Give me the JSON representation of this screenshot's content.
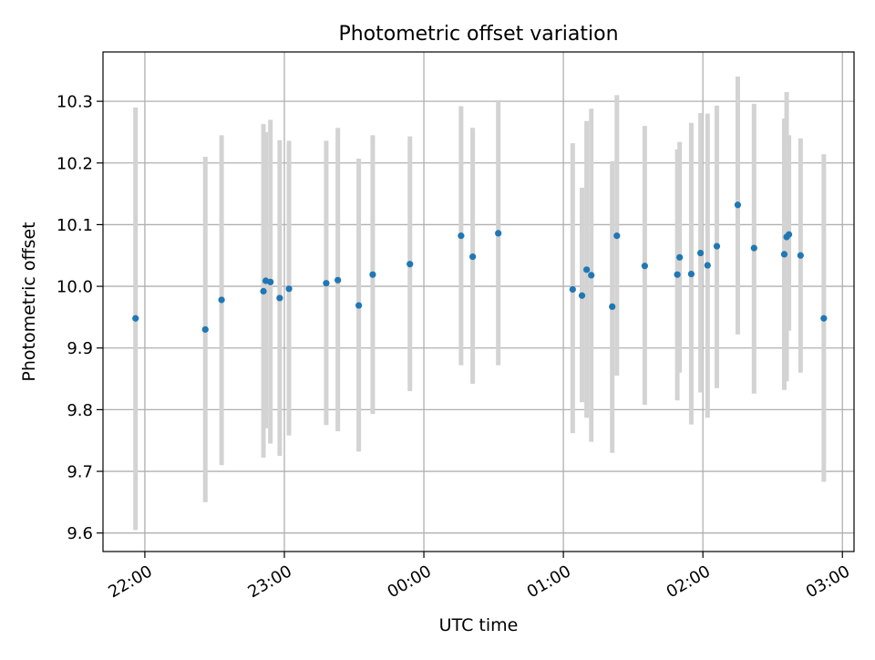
{
  "chart_data": {
    "type": "scatter",
    "title": "Photometric offset variation",
    "xlabel": "UTC time",
    "ylabel": "Photometric offset",
    "x_axis_kind": "time of day (UTC), spanning midnight",
    "xlim": [
      "21:42",
      "03:05"
    ],
    "ylim": [
      9.57,
      10.38
    ],
    "x_ticks": [
      "22:00",
      "23:00",
      "00:00",
      "01:00",
      "02:00",
      "03:00"
    ],
    "y_ticks": [
      "9.6",
      "9.7",
      "9.8",
      "9.9",
      "10.0",
      "10.1",
      "10.2",
      "10.3"
    ],
    "grid": true,
    "colors": {
      "point": "#1f77b4",
      "errorbar": "#d3d3d3",
      "grid": "#b0b0b0"
    },
    "series": [
      {
        "x": [
          "21:56",
          "22:26",
          "22:33",
          "22:51",
          "22:52",
          "22:54",
          "22:58",
          "23:02",
          "23:18",
          "23:23",
          "23:32",
          "23:38",
          "23:54",
          "00:16",
          "00:21",
          "00:32",
          "01:04",
          "01:08",
          "01:10",
          "01:12",
          "01:21",
          "01:23",
          "01:35",
          "01:49",
          "01:50",
          "01:55",
          "01:59",
          "02:02",
          "02:06",
          "02:15",
          "02:22",
          "02:35",
          "02:36",
          "02:37",
          "02:42",
          "02:52"
        ],
        "y": [
          9.948,
          9.93,
          9.978,
          9.992,
          10.009,
          10.007,
          9.981,
          9.996,
          10.005,
          10.01,
          9.969,
          10.019,
          10.036,
          10.082,
          10.048,
          10.086,
          9.995,
          9.985,
          10.027,
          10.018,
          9.967,
          10.082,
          10.033,
          10.019,
          10.047,
          10.02,
          10.054,
          10.034,
          10.065,
          10.132,
          10.062,
          10.052,
          10.08,
          10.084,
          10.05,
          9.948
        ],
        "y_err_low": [
          9.605,
          9.65,
          9.71,
          9.722,
          9.77,
          9.745,
          9.725,
          9.758,
          9.775,
          9.765,
          9.732,
          9.793,
          9.83,
          9.872,
          9.842,
          9.872,
          9.762,
          9.812,
          9.787,
          9.748,
          9.73,
          9.855,
          9.808,
          9.815,
          9.86,
          9.776,
          9.828,
          9.787,
          9.835,
          9.922,
          9.826,
          9.832,
          9.846,
          9.928,
          9.86,
          9.683
        ],
        "y_err_high": [
          10.29,
          10.21,
          10.245,
          10.263,
          10.25,
          10.27,
          10.237,
          10.236,
          10.236,
          10.257,
          10.207,
          10.245,
          10.243,
          10.292,
          10.257,
          10.302,
          10.232,
          10.16,
          10.268,
          10.288,
          10.203,
          10.31,
          10.26,
          10.222,
          10.234,
          10.265,
          10.281,
          10.28,
          10.293,
          10.34,
          10.296,
          10.272,
          10.315,
          10.245,
          10.24,
          10.214
        ]
      }
    ]
  }
}
